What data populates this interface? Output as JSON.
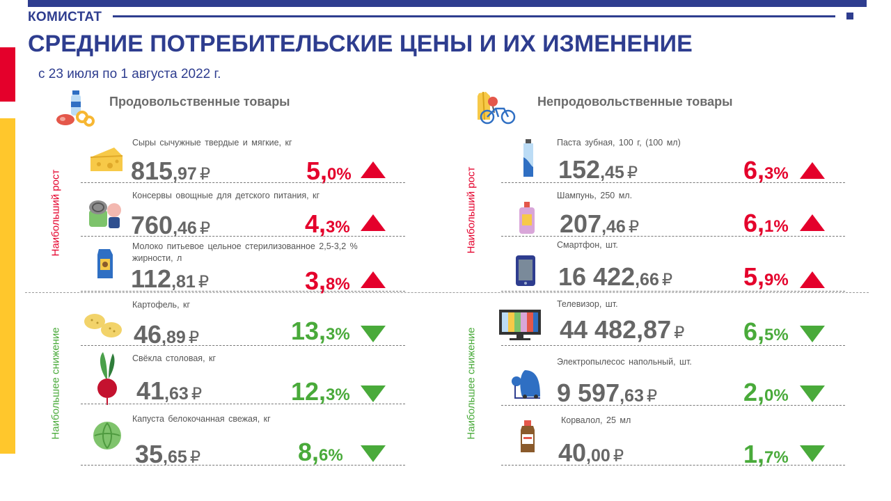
{
  "header": {
    "brand": "КОМИСТАТ",
    "title": "СРЕДНИЕ ПОТРЕБИТЕЛЬСКИЕ ЦЕНЫ И ИХ ИЗМЕНЕНИЕ",
    "period": "с 23 июля  по 1 августа 2022 г."
  },
  "sections": {
    "food": "Продовольственные товары",
    "nonfood": "Непродовольственные товары"
  },
  "side_labels": {
    "growth": "Наибольший рост",
    "decline": "Наибольшее снижение"
  },
  "currency": "₽",
  "food": [
    {
      "name": "Сыры  сычужные твердые  и  мягкие, кг",
      "price_int": "815",
      "price_dec": ",97",
      "pct_int": "5,",
      "pct_dec": "0%",
      "direction": "up",
      "icon": "cheese-icon"
    },
    {
      "name": "Консервы овощные для детского питания,  кг",
      "price_int": "760",
      "price_dec": ",46",
      "pct_int": "4,",
      "pct_dec": "3%",
      "direction": "up",
      "icon": "baby-food-can-icon"
    },
    {
      "name": "Молоко питьевое цельное стерилизованное  2,5-3,2 %  жирности,  л",
      "price_int": "112",
      "price_dec": ",81",
      "pct_int": "3,",
      "pct_dec": "8%",
      "direction": "up",
      "icon": "milk-carton-icon"
    },
    {
      "name": "Картофель,  кг",
      "price_int": "46",
      "price_dec": ",89",
      "pct_int": "13,",
      "pct_dec": "3%",
      "direction": "down",
      "icon": "potato-icon"
    },
    {
      "name": "Свёкла  столовая,  кг",
      "price_int": "41",
      "price_dec": ",63",
      "pct_int": "12,",
      "pct_dec": "3%",
      "direction": "down",
      "icon": "beet-icon"
    },
    {
      "name": "Капуста белокочанная свежая, кг",
      "price_int": "35",
      "price_dec": ",65",
      "pct_int": "8,",
      "pct_dec": "6%",
      "direction": "down",
      "icon": "cabbage-icon"
    }
  ],
  "nonfood": [
    {
      "name": "Паста зубная, 100 г, (100 мл)",
      "price_int": "152",
      "price_dec": ",45",
      "pct_int": "6,",
      "pct_dec": "3%",
      "direction": "up",
      "icon": "toothpaste-icon"
    },
    {
      "name": "Шампунь,  250 мл.",
      "price_int": "207",
      "price_dec": ",46",
      "pct_int": "6,",
      "pct_dec": "1%",
      "direction": "up",
      "icon": "shampoo-icon"
    },
    {
      "name": "Смартфон,  шт.",
      "price_int": "16 422",
      "price_dec": ",66",
      "pct_int": "5,",
      "pct_dec": "9%",
      "direction": "up",
      "icon": "smartphone-icon"
    },
    {
      "name": "Телевизор,  шт.",
      "price_int": "44 482,87",
      "price_dec": "",
      "pct_int": "6,",
      "pct_dec": "5%",
      "direction": "down",
      "icon": "tv-icon"
    },
    {
      "name": "Электропылесос  напольный,  шт.",
      "price_int": "9 597",
      "price_dec": ",63",
      "pct_int": "2,",
      "pct_dec": "0%",
      "direction": "down",
      "icon": "vacuum-cleaner-icon"
    },
    {
      "name": "Корвалол,  25  мл",
      "price_int": "40",
      "price_dec": ",00",
      "pct_int": "1,",
      "pct_dec": "7%",
      "direction": "down",
      "icon": "medicine-bottle-icon"
    }
  ],
  "colors": {
    "brand_blue": "#2e3d8f",
    "red": "#e4002b",
    "green": "#49aa3a",
    "yellow": "#ffc72c"
  }
}
